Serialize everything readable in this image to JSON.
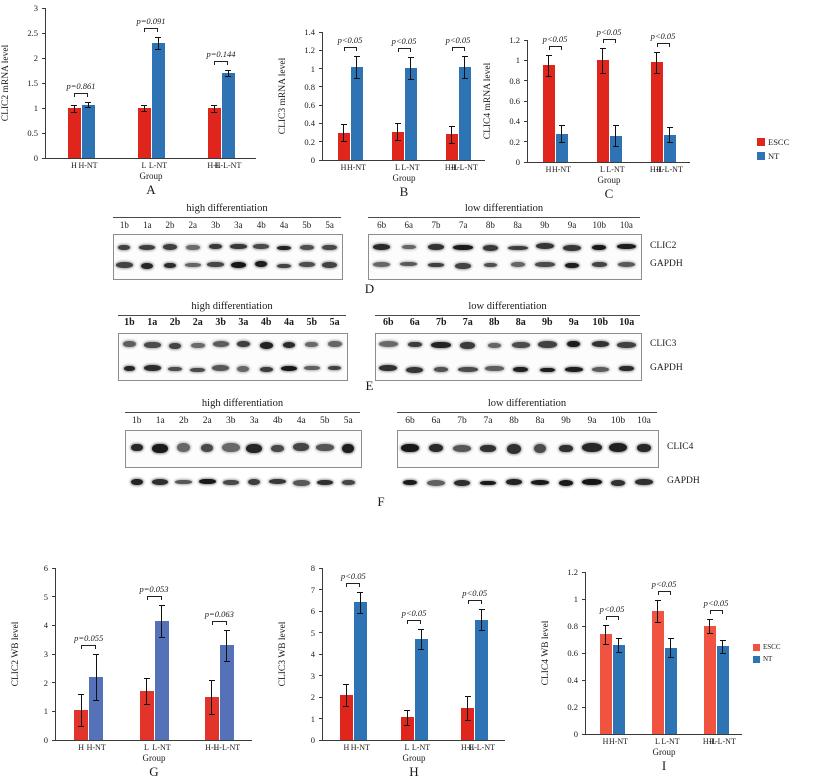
{
  "legend_top": {
    "items": [
      {
        "label": "ESCC",
        "color": "#e0251d"
      },
      {
        "label": "NT",
        "color": "#2e74b5"
      }
    ]
  },
  "legend_bottom": {
    "items": [
      {
        "label": "ESCC",
        "color": "#f0533f"
      },
      {
        "label": "NT",
        "color": "#2e74b5"
      }
    ]
  },
  "chart_data": [
    {
      "type": "bar",
      "panel": "A",
      "title": "",
      "ylabel": "CLIC2 mRNA level",
      "xlabel": "Group",
      "ylim": [
        0,
        3
      ],
      "ytick_step": 0.5,
      "categories": [
        [
          "H",
          "H-NT"
        ],
        [
          "L",
          "L-NT"
        ],
        [
          "H-L",
          "H-L-NT"
        ]
      ],
      "series": [
        {
          "name": "ESCC",
          "color": "#e0251d",
          "values": [
            1.0,
            1.0,
            1.0
          ],
          "errors": [
            0.07,
            0.06,
            0.07
          ]
        },
        {
          "name": "NT",
          "color": "#2e74b5",
          "values": [
            1.07,
            2.3,
            1.7
          ],
          "errors": [
            0.05,
            0.12,
            0.06
          ]
        }
      ],
      "p_labels": [
        "p=0.861",
        "p=0.091",
        "p=0.144"
      ]
    },
    {
      "type": "bar",
      "panel": "B",
      "title": "",
      "ylabel": "CLIC3 mRNA level",
      "xlabel": "Group",
      "ylim": [
        0,
        1.4
      ],
      "ytick_step": 0.2,
      "categories": [
        [
          "H",
          "H-NT"
        ],
        [
          "L",
          "L-NT"
        ],
        [
          "H-L",
          "H-L-NT"
        ]
      ],
      "series": [
        {
          "name": "ESCC",
          "color": "#e0251d",
          "values": [
            0.3,
            0.31,
            0.28
          ],
          "errors": [
            0.09,
            0.09,
            0.09
          ]
        },
        {
          "name": "NT",
          "color": "#2e74b5",
          "values": [
            1.02,
            1.01,
            1.02
          ],
          "errors": [
            0.12,
            0.12,
            0.12
          ]
        }
      ],
      "p_labels": [
        "p<0.05",
        "p<0.05",
        "p<0.05"
      ]
    },
    {
      "type": "bar",
      "panel": "C",
      "title": "",
      "ylabel": "CLIC4 mRNA level",
      "xlabel": "Group",
      "ylim": [
        0,
        1.2
      ],
      "ytick_step": 0.2,
      "categories": [
        [
          "H",
          "H-NT"
        ],
        [
          "L",
          "L-NT"
        ],
        [
          "H-L",
          "H-L-NT"
        ]
      ],
      "series": [
        {
          "name": "ESCC",
          "color": "#e0251d",
          "values": [
            0.95,
            1.0,
            0.98
          ],
          "errors": [
            0.1,
            0.12,
            0.1
          ]
        },
        {
          "name": "NT",
          "color": "#2e74b5",
          "values": [
            0.28,
            0.26,
            0.27
          ],
          "errors": [
            0.08,
            0.1,
            0.07
          ]
        }
      ],
      "p_labels": [
        "p<0.05",
        "p<0.05",
        "p<0.05"
      ]
    },
    {
      "type": "bar",
      "panel": "G",
      "title": "",
      "ylabel": "CLIC2 WB level",
      "xlabel": "Group",
      "ylim": [
        0,
        6
      ],
      "ytick_step": 1,
      "categories": [
        [
          "H",
          "H-NT"
        ],
        [
          "L",
          "L-NT"
        ],
        [
          "H-L",
          "H-L-NT"
        ]
      ],
      "series": [
        {
          "name": "ESCC",
          "color": "#e2342b",
          "values": [
            1.05,
            1.7,
            1.5
          ],
          "errors": [
            0.55,
            0.45,
            0.6
          ]
        },
        {
          "name": "NT",
          "color": "#5572b9",
          "values": [
            2.2,
            4.15,
            3.3
          ],
          "errors": [
            0.8,
            0.55,
            0.55
          ]
        }
      ],
      "p_labels": [
        "p=0.055",
        "p=0.053",
        "p=0.063"
      ]
    },
    {
      "type": "bar",
      "panel": "H",
      "title": "",
      "ylabel": "CLIC3 WB level",
      "xlabel": "Group",
      "ylim": [
        0,
        8
      ],
      "ytick_step": 1,
      "categories": [
        [
          "H",
          "H-NT"
        ],
        [
          "L",
          "L-NT"
        ],
        [
          "H-L",
          "H-L-NT"
        ]
      ],
      "series": [
        {
          "name": "ESCC",
          "color": "#e0251d",
          "values": [
            2.1,
            1.05,
            1.5
          ],
          "errors": [
            0.5,
            0.35,
            0.55
          ]
        },
        {
          "name": "NT",
          "color": "#2e74b5",
          "values": [
            6.4,
            4.7,
            5.6
          ],
          "errors": [
            0.5,
            0.45,
            0.5
          ]
        }
      ],
      "p_labels": [
        "p<0.05",
        "p<0.05",
        "p<0.05"
      ]
    },
    {
      "type": "bar",
      "panel": "I",
      "title": "",
      "ylabel": "CLIC4 WB level",
      "xlabel": "Group",
      "ylim": [
        0,
        1.2
      ],
      "ytick_step": 0.2,
      "categories": [
        [
          "H",
          "H-NT"
        ],
        [
          "L",
          "L-NT"
        ],
        [
          "H-L",
          "H-L-NT"
        ]
      ],
      "series": [
        {
          "name": "ESCC",
          "color": "#f0533f",
          "values": [
            0.74,
            0.91,
            0.8
          ],
          "errors": [
            0.07,
            0.08,
            0.05
          ]
        },
        {
          "name": "NT",
          "color": "#2e74b5",
          "values": [
            0.66,
            0.64,
            0.65
          ],
          "errors": [
            0.05,
            0.07,
            0.05
          ]
        }
      ],
      "p_labels": [
        "p<0.05",
        "p<0.05",
        "p<0.05"
      ]
    }
  ],
  "blots": [
    {
      "panel": "D",
      "rows": [
        "CLIC2",
        "GAPDH"
      ],
      "groups": [
        {
          "title": "high differentiation",
          "lanes": [
            "1b",
            "1a",
            "2b",
            "2a",
            "3b",
            "3a",
            "4b",
            "4a",
            "5b",
            "5a"
          ]
        },
        {
          "title": "low differentiation",
          "lanes": [
            "6b",
            "6a",
            "7b",
            "7a",
            "8b",
            "8a",
            "9b",
            "9a",
            "10b",
            "10a"
          ]
        }
      ]
    },
    {
      "panel": "E",
      "rows": [
        "CLIC3",
        "GAPDH"
      ],
      "groups": [
        {
          "title": "high differentiation",
          "lanes": [
            "1b",
            "1a",
            "2b",
            "2a",
            "3b",
            "3a",
            "4b",
            "4a",
            "5b",
            "5a"
          ]
        },
        {
          "title": "low differentiation",
          "lanes": [
            "6b",
            "6a",
            "7b",
            "7a",
            "8b",
            "8a",
            "9b",
            "9a",
            "10b",
            "10a"
          ]
        }
      ]
    },
    {
      "panel": "F",
      "rows": [
        "CLIC4",
        "GAPDH"
      ],
      "groups": [
        {
          "title": "high differentiation",
          "lanes": [
            "1b",
            "1a",
            "2b",
            "2a",
            "3b",
            "3a",
            "4b",
            "4a",
            "5b",
            "5a"
          ]
        },
        {
          "title": "low differentiation",
          "lanes": [
            "6b",
            "6a",
            "7b",
            "7a",
            "8b",
            "8a",
            "9b",
            "9a",
            "10b",
            "10a"
          ]
        }
      ]
    }
  ]
}
